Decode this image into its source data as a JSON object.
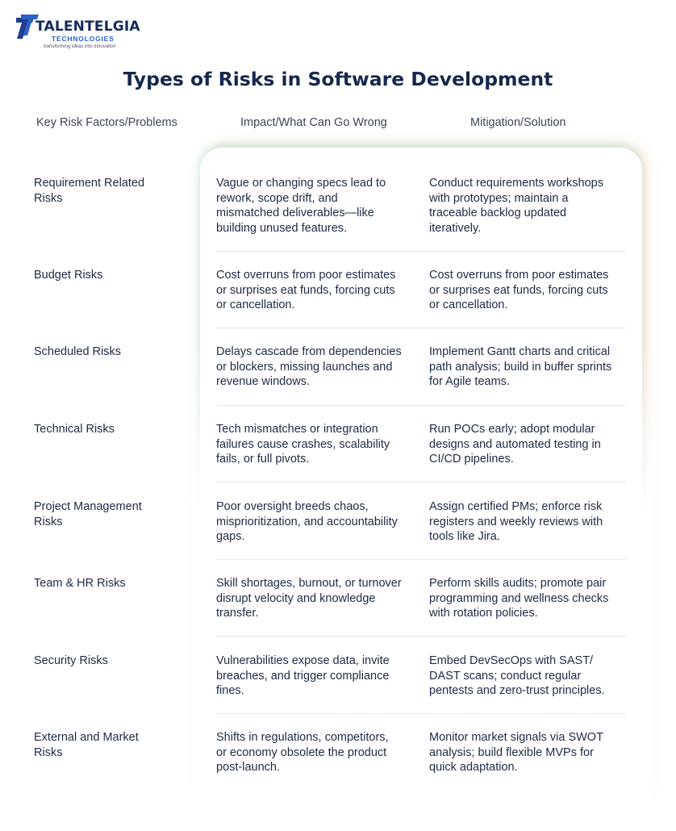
{
  "brand": {
    "name": "TALENTELGIA",
    "sub": "TECHNOLOGIES",
    "tagline": "transforming ideas into innovation"
  },
  "title": "Types of Risks in Software Development",
  "columns": [
    "Key Risk Factors/Problems",
    "Impact/What Can Go Wrong",
    "Mitigation/Solution"
  ],
  "rows": [
    {
      "risk": "Requirement Related\nRisks",
      "impact": "Vague or changing specs lead to\nrework, scope drift, and\nmismatched deliverables—like\nbuilding unused features.",
      "mitigation": "Conduct requirements workshops\nwith prototypes; maintain a\ntraceable backlog updated\niteratively."
    },
    {
      "risk": "Budget Risks",
      "impact": "Cost overruns from poor estimates\nor surprises eat funds, forcing cuts\nor cancellation.",
      "mitigation": "Cost overruns from poor estimates\nor surprises eat funds, forcing cuts\nor cancellation."
    },
    {
      "risk": "Scheduled Risks",
      "impact": "Delays cascade from dependencies\nor blockers, missing launches and\nrevenue windows.",
      "mitigation": "Implement Gantt charts and critical\npath analysis; build in buffer sprints\nfor Agile teams."
    },
    {
      "risk": "Technical Risks",
      "impact": "Tech mismatches or integration\nfailures cause crashes, scalability\nfails, or full pivots.",
      "mitigation": "Run POCs early; adopt modular\ndesigns and automated testing in\nCI/CD pipelines."
    },
    {
      "risk": "Project Management\nRisks",
      "impact": "Poor oversight breeds chaos,\nmisprioritization, and accountability\ngaps.",
      "mitigation": "Assign certified PMs; enforce risk\nregisters and weekly reviews with\ntools like Jira."
    },
    {
      "risk": "Team & HR Risks",
      "impact": "Skill shortages, burnout, or turnover\ndisrupt velocity and knowledge\ntransfer.",
      "mitigation": "Perform skills audits; promote pair\nprogramming and wellness checks\nwith rotation policies."
    },
    {
      "risk": "Security Risks",
      "impact": "Vulnerabilities expose data, invite\nbreaches, and trigger compliance\nfines.",
      "mitigation": "Embed DevSecOps with SAST/\nDAST scans; conduct regular\npentests and zero-trust principles."
    },
    {
      "risk": "External and Market\nRisks",
      "impact": "Shifts in regulations, competitors,\nor economy obsolete the product\npost-launch.",
      "mitigation": "Monitor market signals via SWOT\nanalysis; build flexible MVPs for\nquick adaptation."
    }
  ]
}
